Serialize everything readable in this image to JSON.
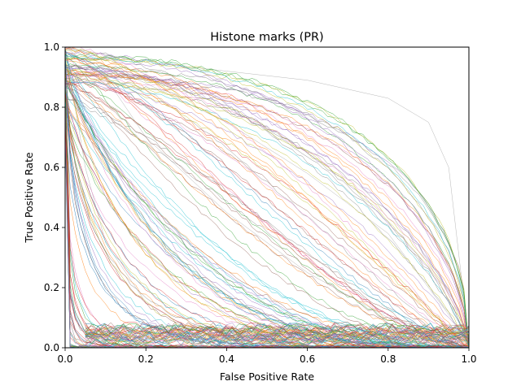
{
  "chart_data": {
    "type": "line",
    "title": "Histone marks (PR)",
    "xlabel": "False Positive Rate",
    "ylabel": "True Positive Rate",
    "xlim": [
      0.0,
      1.0
    ],
    "ylim": [
      0.0,
      1.0
    ],
    "xticks": [
      "0.0",
      "0.2",
      "0.4",
      "0.6",
      "0.8",
      "1.0"
    ],
    "yticks": [
      "0.0",
      "0.2",
      "0.4",
      "0.6",
      "0.8",
      "1.0"
    ],
    "grid": false,
    "legend": "none",
    "series_count": 150,
    "palette": [
      "#1f77b4",
      "#ff7f0e",
      "#2ca02c",
      "#d62728",
      "#9467bd",
      "#8c564b",
      "#e377c2",
      "#7f7f7f",
      "#bcbd22",
      "#17becf"
    ],
    "representative_series": [
      {
        "x": [
          0.0,
          0.2,
          0.4,
          0.6,
          0.8,
          0.9,
          0.95,
          1.0
        ],
        "y": [
          1.0,
          0.95,
          0.92,
          0.89,
          0.83,
          0.75,
          0.6,
          0.02
        ]
      },
      {
        "x": [
          0.0,
          0.2,
          0.4,
          0.6,
          0.8,
          1.0
        ],
        "y": [
          1.0,
          0.88,
          0.75,
          0.58,
          0.38,
          0.02
        ]
      },
      {
        "x": [
          0.0,
          0.1,
          0.2,
          0.4,
          0.6,
          0.8,
          1.0
        ],
        "y": [
          1.0,
          0.9,
          0.7,
          0.45,
          0.25,
          0.1,
          0.02
        ]
      },
      {
        "x": [
          0.0,
          0.05,
          0.1,
          0.2,
          0.3,
          0.5,
          1.0
        ],
        "y": [
          1.0,
          0.6,
          0.35,
          0.15,
          0.07,
          0.03,
          0.0
        ]
      }
    ]
  }
}
